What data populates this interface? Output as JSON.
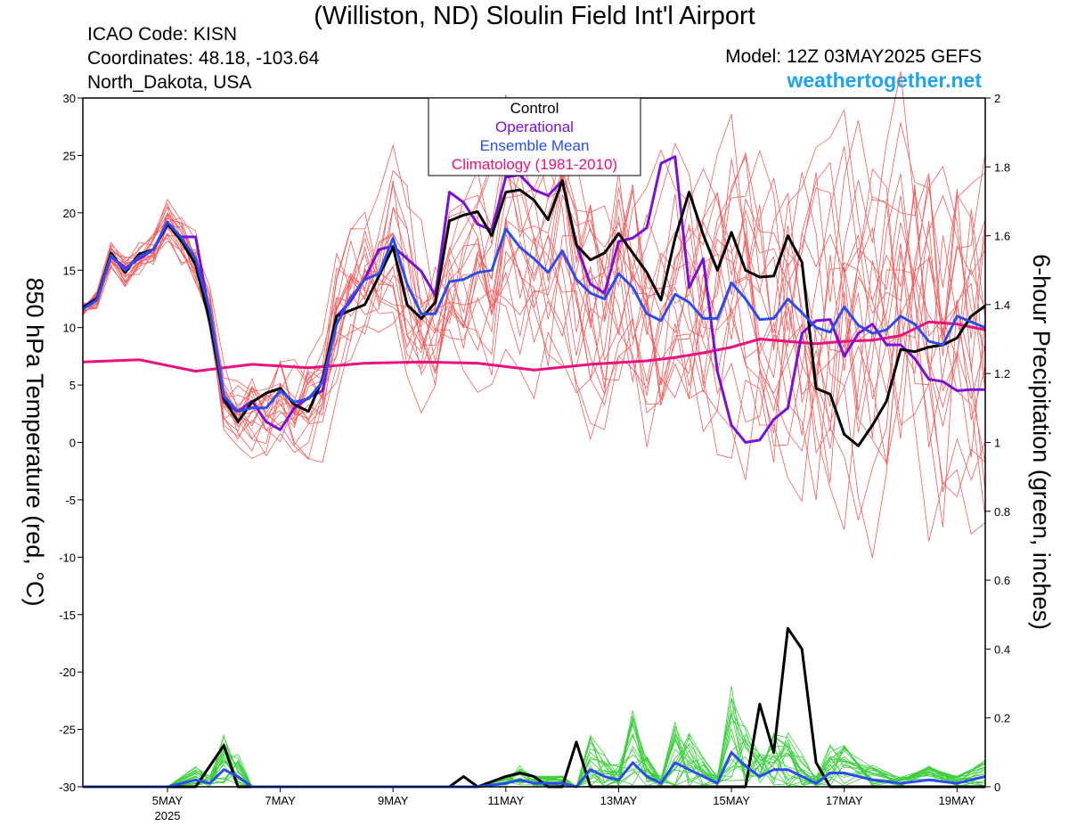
{
  "header": {
    "title": "(Williston, ND) Sloulin Field Int'l Airport",
    "icao": "ICAO Code: KISN",
    "coordinates": "Coordinates: 48.18, -103.64",
    "region": "North_Dakota, USA",
    "model": "Model: 12Z 03MAY2025 GEFS",
    "site": "weathertogether.net"
  },
  "colors": {
    "members": "#f25c5c",
    "control": "#000000",
    "operational": "#7a10d6",
    "ensemble_mean": "#2a4df0",
    "climatology": "#e8117e",
    "precip_members": "#3ccf3c"
  },
  "chart_data": {
    "type": "line",
    "title": "(Williston, ND) Sloulin Field Int'l Airport",
    "ylabel": "850 hPa Temperature (red, °C)",
    "y2label": "6-hour Precipitation (green, inches)",
    "ylim": [
      -30,
      30
    ],
    "y2lim": [
      0,
      2
    ],
    "yticks": [
      "30",
      "25",
      "20",
      "15",
      "10",
      "5",
      "0",
      "-5",
      "-10",
      "-15",
      "-20",
      "-25",
      "-30"
    ],
    "y2ticks": [
      "2",
      "1.8",
      "1.6",
      "1.4",
      "1.2",
      "1",
      "0.8",
      "0.6",
      "0.4",
      "0.2",
      "0"
    ],
    "x_unit": "days since 03MAY2025 12Z",
    "xlim": [
      0,
      16
    ],
    "xticks": [
      {
        "x": 1.5,
        "label": "5MAY",
        "sub": "2025"
      },
      {
        "x": 3.5,
        "label": "7MAY",
        "sub": ""
      },
      {
        "x": 5.5,
        "label": "9MAY",
        "sub": ""
      },
      {
        "x": 7.5,
        "label": "11MAY",
        "sub": ""
      },
      {
        "x": 9.5,
        "label": "13MAY",
        "sub": ""
      },
      {
        "x": 11.5,
        "label": "15MAY",
        "sub": ""
      },
      {
        "x": 13.5,
        "label": "17MAY",
        "sub": ""
      },
      {
        "x": 15.5,
        "label": "19MAY",
        "sub": ""
      }
    ],
    "legend": [
      "Control",
      "Operational",
      "Ensemble Mean",
      "Climatology (1981-2010)"
    ],
    "legend_position": "top-center",
    "grid": false,
    "series": [
      {
        "name": "Control",
        "axis": "temp",
        "x": [
          0,
          0.25,
          0.5,
          0.75,
          1,
          1.25,
          1.5,
          1.75,
          2,
          2.25,
          2.5,
          2.75,
          3,
          3.25,
          3.5,
          3.75,
          4,
          4.25,
          4.5,
          4.75,
          5,
          5.25,
          5.5,
          5.75,
          6,
          6.25,
          6.5,
          6.75,
          7,
          7.25,
          7.5,
          7.75,
          8,
          8.25,
          8.5,
          8.75,
          9,
          9.25,
          9.5,
          9.75,
          10,
          10.25,
          10.5,
          10.75,
          11,
          11.25,
          11.5,
          11.75,
          12,
          12.25,
          12.5,
          12.75,
          13,
          13.25,
          13.5,
          13.75,
          14,
          14.25,
          14.5,
          14.75,
          15,
          15.25,
          15.5,
          15.75,
          16
        ],
        "y": [
          11.7,
          12.5,
          16.5,
          14.8,
          16.4,
          16.8,
          19.1,
          17.5,
          15.5,
          10.5,
          3.8,
          1.8,
          3.5,
          4.3,
          4.7,
          3.3,
          2.7,
          5.5,
          11,
          11.5,
          12,
          14.5,
          17,
          12,
          10.8,
          12.2,
          19.3,
          19.8,
          20.1,
          18,
          21.8,
          22,
          21.1,
          19.4,
          22.8,
          17.2,
          15.9,
          16.5,
          18.2,
          16.5,
          14.8,
          12.4,
          17.8,
          21.8,
          18.1,
          15,
          18.3,
          15,
          14.4,
          14.5,
          18,
          15.7,
          4.7,
          4.2,
          0.7,
          -0.3,
          1.5,
          3.6,
          8.1,
          7.9,
          8.3,
          8.5,
          9.1,
          11,
          11.9
        ]
      },
      {
        "name": "Operational",
        "axis": "temp",
        "x": [
          0,
          0.25,
          0.5,
          0.75,
          1,
          1.25,
          1.5,
          1.75,
          2,
          2.25,
          2.5,
          2.75,
          3,
          3.25,
          3.5,
          3.75,
          4,
          4.25,
          4.5,
          4.75,
          5,
          5.25,
          5.5,
          5.75,
          6,
          6.25,
          6.5,
          6.75,
          7,
          7.25,
          7.5,
          7.75,
          8,
          8.25,
          8.5,
          8.75,
          9,
          9.25,
          9.5,
          9.75,
          10,
          10.25,
          10.5,
          10.75,
          11,
          11.25,
          11.5,
          11.75,
          12,
          12.25,
          12.5,
          12.75,
          13,
          13.25,
          13.5,
          13.75,
          14,
          14.25,
          14.5,
          14.75,
          15,
          15.25,
          15.5,
          15.75,
          16
        ],
        "y": [
          11.8,
          12.6,
          16.2,
          15.2,
          16,
          16.8,
          18.9,
          17.9,
          17.9,
          11,
          3.5,
          2.7,
          3.6,
          1.8,
          1.1,
          3,
          3.9,
          4.5,
          11,
          12.3,
          14.3,
          16.8,
          17.1,
          16,
          14.9,
          12.8,
          21.8,
          20.9,
          19,
          18.5,
          23.1,
          23.3,
          22,
          21.5,
          22.8,
          17.2,
          13.8,
          13,
          17.5,
          17.8,
          18.7,
          24.3,
          24.9,
          13.5,
          16,
          6.2,
          1.5,
          0,
          0.2,
          2,
          3,
          9.5,
          10.6,
          10.7,
          7.5,
          9.5,
          10.3,
          8.5,
          8.5,
          7.3,
          5.5,
          5.3,
          4.5,
          4.6,
          4.6
        ]
      },
      {
        "name": "Ensemble Mean",
        "axis": "temp",
        "x": [
          0,
          0.25,
          0.5,
          0.75,
          1,
          1.25,
          1.5,
          1.75,
          2,
          2.25,
          2.5,
          2.75,
          3,
          3.25,
          3.5,
          3.75,
          4,
          4.25,
          4.5,
          4.75,
          5,
          5.25,
          5.5,
          5.75,
          6,
          6.25,
          6.5,
          6.75,
          7,
          7.25,
          7.5,
          7.75,
          8,
          8.25,
          8.5,
          8.75,
          9,
          9.25,
          9.5,
          9.75,
          10,
          10.25,
          10.5,
          10.75,
          11,
          11.25,
          11.5,
          11.75,
          12,
          12.25,
          12.5,
          12.75,
          13,
          13.25,
          13.5,
          13.75,
          14,
          14.25,
          14.5,
          14.75,
          15,
          15.25,
          15.5,
          15.75,
          16
        ],
        "y": [
          11.6,
          12.4,
          16.3,
          15,
          16.2,
          16.8,
          19.2,
          17.8,
          16,
          11.5,
          4,
          2.7,
          3,
          3,
          4.5,
          3.5,
          3.8,
          5.3,
          10.3,
          12.6,
          14.2,
          14.7,
          17.8,
          13.8,
          11.2,
          11.2,
          14,
          14.2,
          14.8,
          15,
          18.6,
          17,
          16,
          14.8,
          16.7,
          14.2,
          13,
          12.5,
          14.7,
          13.5,
          11.2,
          10.6,
          12.9,
          12.2,
          10.8,
          10.8,
          13.9,
          12.5,
          10.7,
          10.8,
          12.5,
          11.3,
          10,
          9.6,
          11.8,
          10.2,
          9.5,
          9.8,
          11,
          10.3,
          8.8,
          8.5,
          11,
          10.5,
          10
        ]
      },
      {
        "name": "Climatology (1981-2010)",
        "axis": "temp",
        "x": [
          0,
          1,
          2,
          3,
          4,
          5,
          6,
          7,
          8,
          9,
          10,
          10.5,
          11,
          11.5,
          12,
          12.5,
          13,
          13.5,
          14,
          14.5,
          15,
          15.5,
          16
        ],
        "y": [
          7,
          7.2,
          6.2,
          6.8,
          6.5,
          6.9,
          7,
          6.9,
          6.3,
          6.8,
          7.1,
          7.4,
          7.8,
          8.3,
          9,
          8.8,
          8.6,
          8.8,
          8.9,
          9.3,
          10.5,
          10.3,
          9.8
        ]
      },
      {
        "name": "Control",
        "axis": "precip",
        "x": [
          0,
          1.5,
          2,
          2.5,
          2.75,
          3,
          3.5,
          4,
          5,
          6,
          6.5,
          6.75,
          7,
          7.5,
          7.75,
          8,
          8.25,
          8.5,
          8.75,
          9,
          9.5,
          10,
          10.5,
          11,
          11.5,
          11.75,
          12,
          12.25,
          12.5,
          12.75,
          13,
          13.25,
          13.5,
          14,
          15,
          16
        ],
        "y": [
          0,
          0,
          0,
          0.12,
          0,
          0,
          0,
          0,
          0,
          0,
          0,
          0.03,
          0,
          0.03,
          0.04,
          0.03,
          0,
          0,
          0.13,
          0,
          0,
          0,
          0,
          0,
          0,
          0,
          0.24,
          0.1,
          0.46,
          0.4,
          0.07,
          0,
          0,
          0,
          0,
          0
        ]
      },
      {
        "name": "Ensemble Mean",
        "axis": "precip",
        "x": [
          0,
          1.5,
          2,
          2.25,
          2.5,
          2.75,
          3,
          3.5,
          4,
          5,
          6,
          7,
          7.5,
          7.75,
          8,
          8.5,
          8.75,
          9,
          9.25,
          9.5,
          9.75,
          10,
          10.25,
          10.5,
          10.75,
          11,
          11.25,
          11.5,
          11.75,
          12,
          12.25,
          12.5,
          12.75,
          13,
          13.25,
          13.5,
          14,
          14.5,
          15,
          15.5,
          16
        ],
        "y": [
          0,
          0,
          0.02,
          0.01,
          0.05,
          0.03,
          0,
          0,
          0,
          0,
          0,
          0,
          0.01,
          0.02,
          0.01,
          0.01,
          0,
          0.05,
          0.03,
          0.02,
          0.07,
          0.03,
          0.01,
          0.07,
          0.05,
          0.03,
          0.01,
          0.1,
          0.06,
          0.03,
          0.05,
          0.05,
          0.03,
          0.01,
          0.04,
          0.04,
          0.02,
          0.01,
          0.02,
          0.01,
          0.03
        ]
      }
    ]
  }
}
